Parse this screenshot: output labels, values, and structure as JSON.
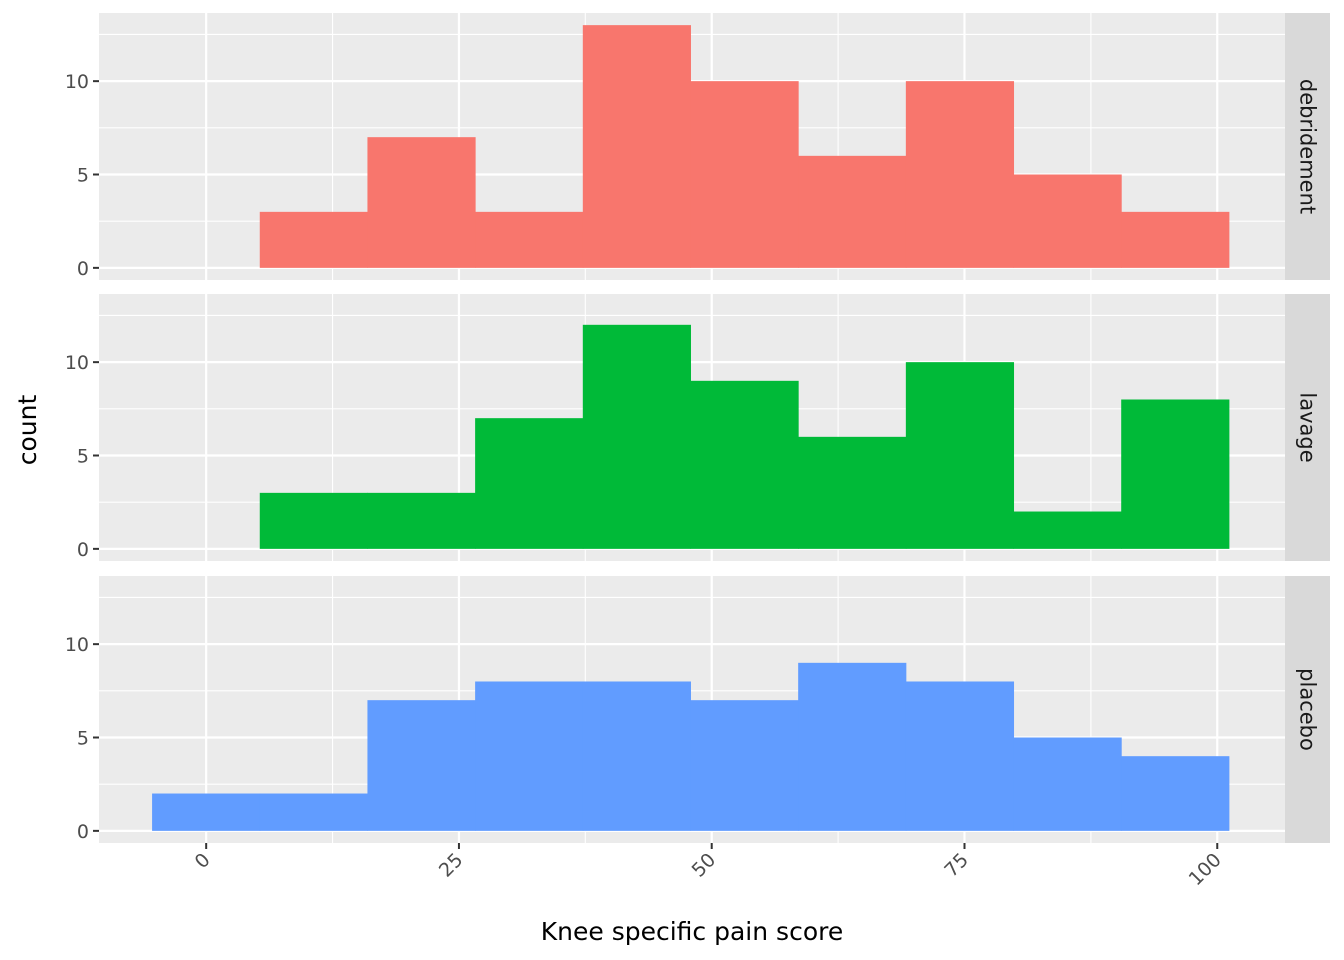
{
  "chart_data": {
    "type": "bar",
    "subtype": "faceted-histogram",
    "xlabel": "Knee specific pain score",
    "ylabel": "count",
    "x_ticks": [
      0,
      25,
      50,
      75,
      100
    ],
    "y_ticks": [
      0,
      5,
      10
    ],
    "xlim": [
      -10.6,
      106.7
    ],
    "ylim": [
      -0.65,
      13.65
    ],
    "bin_width": 10.65,
    "grid": true,
    "facet_strip_position": "right",
    "facets": [
      {
        "name": "debridement",
        "color": "#F8766D",
        "bins": [
          {
            "x0": 5.3,
            "x1": 15.95,
            "count": 3
          },
          {
            "x0": 15.95,
            "x1": 26.6,
            "count": 7
          },
          {
            "x0": 26.6,
            "x1": 37.25,
            "count": 3
          },
          {
            "x0": 37.25,
            "x1": 47.9,
            "count": 13
          },
          {
            "x0": 47.9,
            "x1": 58.55,
            "count": 10
          },
          {
            "x0": 58.55,
            "x1": 69.2,
            "count": 6
          },
          {
            "x0": 69.2,
            "x1": 79.85,
            "count": 10
          },
          {
            "x0": 79.85,
            "x1": 90.5,
            "count": 5
          },
          {
            "x0": 90.5,
            "x1": 101.15,
            "count": 3
          }
        ]
      },
      {
        "name": "lavage",
        "color": "#00BA38",
        "bins": [
          {
            "x0": 5.3,
            "x1": 15.95,
            "count": 3
          },
          {
            "x0": 15.95,
            "x1": 26.6,
            "count": 3
          },
          {
            "x0": 26.6,
            "x1": 37.25,
            "count": 7
          },
          {
            "x0": 37.25,
            "x1": 47.9,
            "count": 12
          },
          {
            "x0": 47.9,
            "x1": 58.55,
            "count": 9
          },
          {
            "x0": 58.55,
            "x1": 69.2,
            "count": 6
          },
          {
            "x0": 69.2,
            "x1": 79.85,
            "count": 10
          },
          {
            "x0": 79.85,
            "x1": 90.5,
            "count": 2
          },
          {
            "x0": 90.5,
            "x1": 101.15,
            "count": 8
          }
        ]
      },
      {
        "name": "placebo",
        "color": "#619CFF",
        "bins": [
          {
            "x0": -5.35,
            "x1": 5.3,
            "count": 2
          },
          {
            "x0": 5.3,
            "x1": 15.95,
            "count": 2
          },
          {
            "x0": 15.95,
            "x1": 26.6,
            "count": 7
          },
          {
            "x0": 26.6,
            "x1": 37.25,
            "count": 8
          },
          {
            "x0": 37.25,
            "x1": 47.9,
            "count": 8
          },
          {
            "x0": 47.9,
            "x1": 58.55,
            "count": 7
          },
          {
            "x0": 58.55,
            "x1": 69.2,
            "count": 9
          },
          {
            "x0": 69.2,
            "x1": 79.85,
            "count": 8
          },
          {
            "x0": 79.85,
            "x1": 90.5,
            "count": 5
          },
          {
            "x0": 90.5,
            "x1": 101.15,
            "count": 4
          }
        ]
      }
    ],
    "colors": {
      "panel_background": "#EBEBEB",
      "strip_background": "#D9D9D9",
      "grid": "#FFFFFF"
    }
  }
}
